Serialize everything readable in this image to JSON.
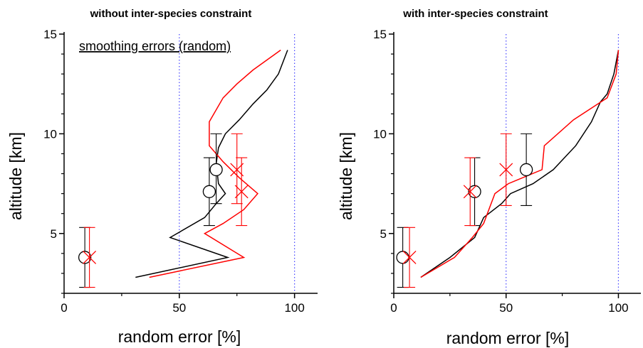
{
  "chart_data": [
    {
      "type": "line",
      "title": "without inter-species constraint",
      "xlabel": "random error [%]",
      "ylabel": "altitude [km]",
      "xlim": [
        0,
        110
      ],
      "ylim": [
        2,
        15
      ],
      "xticks": [
        0,
        50,
        100
      ],
      "yticks": [
        5,
        10,
        15
      ],
      "reference_lines_x": [
        50,
        100
      ],
      "annotation": "smoothing errors (random)",
      "series": [
        {
          "color": "#000000",
          "points": [
            [
              31,
              2.8
            ],
            [
              71,
              3.8
            ],
            [
              46,
              4.8
            ],
            [
              61,
              5.8
            ],
            [
              66,
              6.5
            ],
            [
              70,
              7.0
            ],
            [
              67,
              7.5
            ],
            [
              66,
              8.5
            ],
            [
              67,
              9.3
            ],
            [
              70,
              10.0
            ],
            [
              76,
              10.7
            ],
            [
              82,
              11.5
            ],
            [
              88,
              12.2
            ],
            [
              93,
              13.0
            ],
            [
              97,
              14.2
            ]
          ]
        },
        {
          "color": "#ff0000",
          "points": [
            [
              37,
              2.8
            ],
            [
              78,
              3.8
            ],
            [
              61,
              5.0
            ],
            [
              69,
              5.5
            ],
            [
              78,
              6.2
            ],
            [
              84,
              7.0
            ],
            [
              76,
              7.8
            ],
            [
              69,
              8.6
            ],
            [
              63,
              9.4
            ],
            [
              63,
              10.6
            ],
            [
              69,
              11.8
            ],
            [
              75,
              12.5
            ],
            [
              82,
              13.2
            ],
            [
              88,
              13.7
            ],
            [
              94,
              14.2
            ]
          ]
        }
      ],
      "markers": [
        {
          "shape": "circle",
          "color": "#000000",
          "x": 9,
          "y": 3.8,
          "err": [
            2.3,
            5.3
          ]
        },
        {
          "shape": "circle",
          "color": "#000000",
          "x": 63,
          "y": 7.1,
          "err": [
            5.4,
            8.8
          ]
        },
        {
          "shape": "circle",
          "color": "#000000",
          "x": 66,
          "y": 8.2,
          "err": [
            6.5,
            10.0
          ]
        },
        {
          "shape": "x",
          "color": "#ff0000",
          "x": 11,
          "y": 3.8,
          "err": [
            2.3,
            5.3
          ]
        },
        {
          "shape": "x",
          "color": "#ff0000",
          "x": 77,
          "y": 7.1,
          "err": [
            5.4,
            8.8
          ]
        },
        {
          "shape": "x",
          "color": "#ff0000",
          "x": 75,
          "y": 8.2,
          "err": [
            6.5,
            10.0
          ]
        }
      ]
    },
    {
      "type": "line",
      "title": "with inter-species constraint",
      "xlabel": "random error [%]",
      "ylabel": "altitude [km]",
      "xlim": [
        0,
        110
      ],
      "ylim": [
        2,
        15
      ],
      "xticks": [
        0,
        50,
        100
      ],
      "yticks": [
        5,
        10,
        15
      ],
      "reference_lines_x": [
        50,
        100
      ],
      "series": [
        {
          "color": "#000000",
          "points": [
            [
              12,
              2.8
            ],
            [
              25,
              3.8
            ],
            [
              36,
              4.8
            ],
            [
              40,
              5.8
            ],
            [
              48,
              6.5
            ],
            [
              52,
              7.0
            ],
            [
              62,
              7.5
            ],
            [
              71,
              8.2
            ],
            [
              81,
              9.4
            ],
            [
              88,
              10.6
            ],
            [
              92,
              11.6
            ],
            [
              95,
              12.0
            ],
            [
              98,
              13.0
            ],
            [
              100,
              14.2
            ]
          ]
        },
        {
          "color": "#ff0000",
          "points": [
            [
              12,
              2.8
            ],
            [
              27,
              3.8
            ],
            [
              35,
              4.8
            ],
            [
              40,
              5.5
            ],
            [
              45,
              7.0
            ],
            [
              51,
              7.5
            ],
            [
              66,
              8.2
            ],
            [
              67,
              9.4
            ],
            [
              80,
              10.7
            ],
            [
              95,
              11.8
            ],
            [
              99,
              13.0
            ],
            [
              100,
              14.2
            ]
          ]
        }
      ],
      "markers": [
        {
          "shape": "circle",
          "color": "#000000",
          "x": 4,
          "y": 3.8,
          "err": [
            2.3,
            5.3
          ]
        },
        {
          "shape": "circle",
          "color": "#000000",
          "x": 36,
          "y": 7.1,
          "err": [
            5.4,
            8.8
          ]
        },
        {
          "shape": "circle",
          "color": "#000000",
          "x": 59,
          "y": 8.2,
          "err": [
            6.4,
            10.0
          ]
        },
        {
          "shape": "x",
          "color": "#ff0000",
          "x": 7,
          "y": 3.8,
          "err": [
            2.3,
            5.3
          ]
        },
        {
          "shape": "x",
          "color": "#ff0000",
          "x": 34,
          "y": 7.1,
          "err": [
            5.4,
            8.8
          ]
        },
        {
          "shape": "x",
          "color": "#ff0000",
          "x": 50,
          "y": 8.2,
          "err": [
            6.4,
            10.0
          ]
        }
      ]
    }
  ]
}
